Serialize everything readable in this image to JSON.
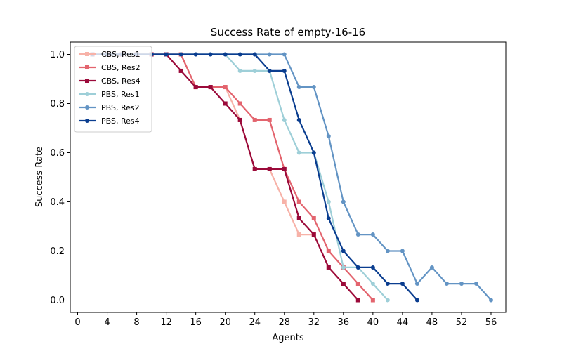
{
  "chart_data": {
    "type": "line",
    "title": "Success Rate of empty-16-16",
    "xlabel": "Agents",
    "ylabel": "Success Rate",
    "xlim": [
      -1,
      58
    ],
    "ylim": [
      -0.05,
      1.05
    ],
    "xticks": [
      0,
      4,
      8,
      12,
      16,
      20,
      24,
      28,
      32,
      36,
      40,
      44,
      48,
      52,
      56
    ],
    "yticks": [
      0.0,
      0.2,
      0.4,
      0.6,
      0.8,
      1.0
    ],
    "ytick_labels": [
      "0.0",
      "0.2",
      "0.4",
      "0.6",
      "0.8",
      "1.0"
    ],
    "grid": false,
    "legend_position": "upper-left",
    "series": [
      {
        "name": "CBS, Res1",
        "color": "#f7b2a8",
        "marker": "square",
        "x": [
          2,
          4,
          6,
          8,
          10,
          12,
          14,
          16,
          18,
          20,
          22,
          24,
          26,
          28,
          30,
          32,
          34,
          36,
          38
        ],
        "y": [
          1.0,
          1.0,
          1.0,
          1.0,
          1.0,
          1.0,
          1.0,
          0.867,
          0.867,
          0.867,
          0.733,
          0.533,
          0.533,
          0.4,
          0.267,
          0.267,
          0.133,
          0.067,
          0.0
        ]
      },
      {
        "name": "CBS, Res2",
        "color": "#e3646e",
        "marker": "square",
        "x": [
          2,
          4,
          6,
          8,
          10,
          12,
          14,
          16,
          18,
          20,
          22,
          24,
          26,
          28,
          30,
          32,
          34,
          36,
          38,
          40
        ],
        "y": [
          1.0,
          1.0,
          1.0,
          1.0,
          1.0,
          1.0,
          1.0,
          0.867,
          0.867,
          0.867,
          0.8,
          0.733,
          0.733,
          0.533,
          0.4,
          0.333,
          0.2,
          0.133,
          0.067,
          0.0
        ]
      },
      {
        "name": "CBS, Res4",
        "color": "#9b0a3a",
        "marker": "square",
        "x": [
          2,
          4,
          6,
          8,
          10,
          12,
          14,
          16,
          18,
          20,
          22,
          24,
          26,
          28,
          30,
          32,
          34,
          36,
          38
        ],
        "y": [
          1.0,
          1.0,
          1.0,
          1.0,
          1.0,
          1.0,
          0.933,
          0.867,
          0.867,
          0.8,
          0.733,
          0.533,
          0.533,
          0.533,
          0.333,
          0.267,
          0.133,
          0.067,
          0.0
        ]
      },
      {
        "name": "PBS, Res1",
        "color": "#9ecfd8",
        "marker": "circle",
        "x": [
          2,
          4,
          6,
          8,
          10,
          12,
          14,
          16,
          18,
          20,
          22,
          24,
          26,
          28,
          30,
          32,
          34,
          36,
          38,
          40,
          42
        ],
        "y": [
          1.0,
          1.0,
          1.0,
          1.0,
          1.0,
          1.0,
          1.0,
          1.0,
          1.0,
          1.0,
          0.933,
          0.933,
          0.933,
          0.733,
          0.6,
          0.6,
          0.4,
          0.133,
          0.133,
          0.067,
          0.0
        ]
      },
      {
        "name": "PBS, Res2",
        "color": "#6394c4",
        "marker": "circle",
        "x": [
          2,
          4,
          6,
          8,
          10,
          12,
          14,
          16,
          18,
          20,
          22,
          24,
          26,
          28,
          30,
          32,
          34,
          36,
          38,
          40,
          42,
          44,
          46,
          48,
          50,
          52,
          54,
          56
        ],
        "y": [
          1.0,
          1.0,
          1.0,
          1.0,
          1.0,
          1.0,
          1.0,
          1.0,
          1.0,
          1.0,
          1.0,
          1.0,
          1.0,
          1.0,
          0.867,
          0.867,
          0.667,
          0.4,
          0.267,
          0.267,
          0.2,
          0.2,
          0.067,
          0.133,
          0.067,
          0.067,
          0.067,
          0.0
        ]
      },
      {
        "name": "PBS, Res4",
        "color": "#0a3d8f",
        "marker": "circle",
        "x": [
          2,
          4,
          6,
          8,
          10,
          12,
          14,
          16,
          18,
          20,
          22,
          24,
          26,
          28,
          30,
          32,
          34,
          36,
          38,
          40,
          42,
          44,
          46
        ],
        "y": [
          1.0,
          1.0,
          1.0,
          1.0,
          1.0,
          1.0,
          1.0,
          1.0,
          1.0,
          1.0,
          1.0,
          1.0,
          0.933,
          0.933,
          0.733,
          0.6,
          0.333,
          0.2,
          0.133,
          0.133,
          0.067,
          0.067,
          0.0
        ]
      }
    ]
  }
}
